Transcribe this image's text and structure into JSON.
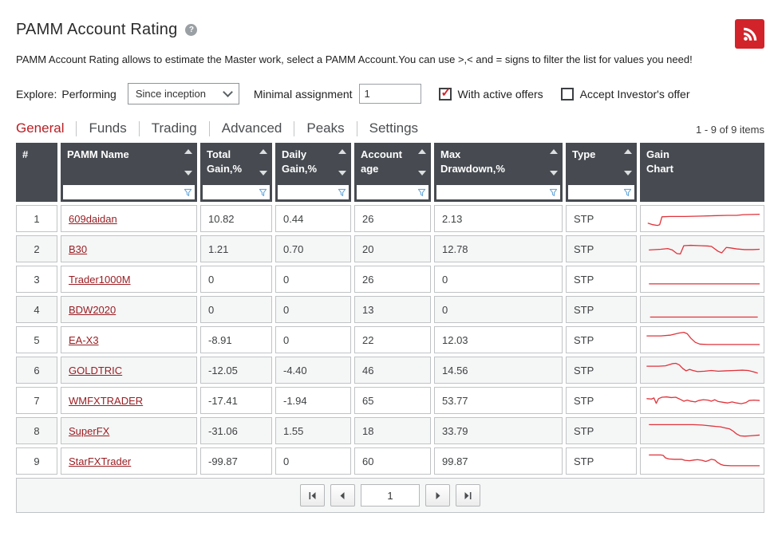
{
  "header": {
    "title": "PAMM Account Rating",
    "help_glyph": "?",
    "description": "PAMM Account Rating allows to estimate the Master work, select a PAMM Account.You can use >,< and = signs to filter the list for values you need!"
  },
  "filters": {
    "explore_label": "Explore:",
    "performing_label": "Performing",
    "period_select_value": "Since inception",
    "minimal_assignment_label": "Minimal assignment",
    "minimal_assignment_value": "1",
    "with_active_offers": {
      "label": "With active offers",
      "checked": true
    },
    "accept_investors_offer": {
      "label": "Accept Investor's offer",
      "checked": false
    }
  },
  "tabs": [
    {
      "label": "General",
      "active": true
    },
    {
      "label": "Funds",
      "active": false
    },
    {
      "label": "Trading",
      "active": false
    },
    {
      "label": "Advanced",
      "active": false
    },
    {
      "label": "Peaks",
      "active": false
    },
    {
      "label": "Settings",
      "active": false
    }
  ],
  "items_count": "1 - 9 of 9 items",
  "table": {
    "columns": [
      {
        "key": "num",
        "label": "#",
        "sortable": false,
        "filter": false
      },
      {
        "key": "name",
        "label": "PAMM Name",
        "sortable": true,
        "filter": true
      },
      {
        "key": "total_gain",
        "label": "Total\nGain,%",
        "sortable": true,
        "filter": true
      },
      {
        "key": "daily_gain",
        "label": "Daily\nGain,%",
        "sortable": true,
        "filter": true
      },
      {
        "key": "age",
        "label": "Account\nage",
        "sortable": true,
        "filter": true
      },
      {
        "key": "max_drawdown",
        "label": "Max\nDrawdown,%",
        "sortable": true,
        "filter": true
      },
      {
        "key": "type",
        "label": "Type",
        "sortable": true,
        "filter": true
      },
      {
        "key": "chart",
        "label": "Gain\nChart",
        "sortable": false,
        "filter": false
      }
    ],
    "rows": [
      {
        "num": "1",
        "name": "609daidan",
        "total_gain": "10.82",
        "daily_gain": "0.44",
        "age": "26",
        "max_drawdown": "2.13",
        "type": "STP",
        "spark": [
          [
            3,
            21
          ],
          [
            7,
            23
          ],
          [
            11,
            24
          ],
          [
            13,
            23
          ],
          [
            15,
            12
          ],
          [
            22,
            11.5
          ],
          [
            35,
            11.5
          ],
          [
            50,
            11
          ],
          [
            60,
            10.5
          ],
          [
            72,
            10
          ],
          [
            80,
            10
          ],
          [
            86,
            9
          ],
          [
            100,
            8.5
          ]
        ]
      },
      {
        "num": "2",
        "name": "B30",
        "total_gain": "1.21",
        "daily_gain": "0.70",
        "age": "20",
        "max_drawdown": "12.78",
        "type": "STP",
        "spark": [
          [
            4,
            16
          ],
          [
            14,
            15
          ],
          [
            20,
            14
          ],
          [
            24,
            16
          ],
          [
            28,
            21
          ],
          [
            31,
            21.5
          ],
          [
            34,
            10
          ],
          [
            40,
            9.5
          ],
          [
            48,
            10
          ],
          [
            55,
            10.5
          ],
          [
            58,
            11
          ],
          [
            64,
            18
          ],
          [
            67,
            20
          ],
          [
            71,
            12.5
          ],
          [
            74,
            13
          ],
          [
            80,
            14.5
          ],
          [
            87,
            15.5
          ],
          [
            94,
            15.5
          ],
          [
            100,
            15
          ]
        ]
      },
      {
        "num": "3",
        "name": "Trader1000M",
        "total_gain": "0",
        "daily_gain": "0",
        "age": "26",
        "max_drawdown": "0",
        "type": "STP",
        "spark": [
          [
            4,
            21
          ],
          [
            100,
            21
          ]
        ]
      },
      {
        "num": "4",
        "name": "BDW2020",
        "total_gain": "0",
        "daily_gain": "0",
        "age": "13",
        "max_drawdown": "0",
        "type": "STP",
        "spark": [
          [
            5,
            25
          ],
          [
            98,
            25
          ]
        ]
      },
      {
        "num": "5",
        "name": "EA-X3",
        "total_gain": "-8.91",
        "daily_gain": "0",
        "age": "22",
        "max_drawdown": "12.03",
        "type": "STP",
        "spark": [
          [
            2,
            9
          ],
          [
            14,
            9
          ],
          [
            22,
            8
          ],
          [
            30,
            5
          ],
          [
            34,
            4
          ],
          [
            37,
            6
          ],
          [
            40,
            12
          ],
          [
            44,
            18
          ],
          [
            48,
            20.5
          ],
          [
            55,
            21
          ],
          [
            100,
            21
          ]
        ]
      },
      {
        "num": "6",
        "name": "GOLDTRIC",
        "total_gain": "-12.05",
        "daily_gain": "-4.40",
        "age": "46",
        "max_drawdown": "14.56",
        "type": "STP",
        "spark": [
          [
            2,
            9
          ],
          [
            12,
            9
          ],
          [
            18,
            8.5
          ],
          [
            24,
            5.5
          ],
          [
            27,
            5
          ],
          [
            30,
            7
          ],
          [
            33,
            12
          ],
          [
            36,
            15.5
          ],
          [
            39,
            13.5
          ],
          [
            42,
            15
          ],
          [
            46,
            16.5
          ],
          [
            52,
            16
          ],
          [
            58,
            15
          ],
          [
            64,
            16
          ],
          [
            70,
            15.5
          ],
          [
            78,
            15
          ],
          [
            85,
            14.5
          ],
          [
            90,
            15
          ],
          [
            94,
            16.5
          ],
          [
            98,
            18.5
          ]
        ]
      },
      {
        "num": "7",
        "name": "WMFXTRADER",
        "total_gain": "-17.41",
        "daily_gain": "-1.94",
        "age": "65",
        "max_drawdown": "53.77",
        "type": "STP",
        "spark": [
          [
            2,
            12
          ],
          [
            6,
            12.5
          ],
          [
            8,
            11
          ],
          [
            10,
            18.5
          ],
          [
            12,
            12
          ],
          [
            15,
            10
          ],
          [
            19,
            9.5
          ],
          [
            23,
            10.5
          ],
          [
            27,
            10
          ],
          [
            31,
            13
          ],
          [
            34,
            15.5
          ],
          [
            37,
            14
          ],
          [
            40,
            15.5
          ],
          [
            44,
            16.5
          ],
          [
            47,
            14.5
          ],
          [
            51,
            13.5
          ],
          [
            55,
            14
          ],
          [
            58,
            15.5
          ],
          [
            61,
            13.5
          ],
          [
            64,
            16
          ],
          [
            68,
            17
          ],
          [
            72,
            18
          ],
          [
            76,
            16.5
          ],
          [
            80,
            18
          ],
          [
            84,
            19
          ],
          [
            88,
            17.5
          ],
          [
            91,
            14.5
          ],
          [
            95,
            14
          ],
          [
            100,
            14.5
          ]
        ]
      },
      {
        "num": "8",
        "name": "SuperFX",
        "total_gain": "-31.06",
        "daily_gain": "1.55",
        "age": "18",
        "max_drawdown": "33.79",
        "type": "STP",
        "spark": [
          [
            4,
            6
          ],
          [
            42,
            6
          ],
          [
            50,
            6.5
          ],
          [
            56,
            7.5
          ],
          [
            62,
            8.5
          ],
          [
            66,
            9
          ],
          [
            70,
            10.5
          ],
          [
            74,
            12
          ],
          [
            77,
            15
          ],
          [
            80,
            19
          ],
          [
            83,
            21.5
          ],
          [
            87,
            22
          ],
          [
            92,
            21.5
          ],
          [
            100,
            20.5
          ]
        ]
      },
      {
        "num": "9",
        "name": "StarFXTrader",
        "total_gain": "-99.87",
        "daily_gain": "0",
        "age": "60",
        "max_drawdown": "99.87",
        "type": "STP",
        "spark": [
          [
            4,
            6
          ],
          [
            14,
            6
          ],
          [
            16,
            6.5
          ],
          [
            18,
            10
          ],
          [
            21,
            11.5
          ],
          [
            26,
            12
          ],
          [
            32,
            12
          ],
          [
            35,
            13.5
          ],
          [
            39,
            14
          ],
          [
            43,
            13
          ],
          [
            46,
            12.5
          ],
          [
            50,
            13.5
          ],
          [
            53,
            15
          ],
          [
            55,
            14
          ],
          [
            58,
            12
          ],
          [
            61,
            13
          ],
          [
            63,
            16
          ],
          [
            66,
            19
          ],
          [
            69,
            20.5
          ],
          [
            75,
            21
          ],
          [
            100,
            21
          ]
        ]
      }
    ]
  },
  "pagination": {
    "page": "1",
    "first_icon": "first-page-icon",
    "prev_icon": "prev-page-icon",
    "next_icon": "next-page-icon",
    "last_icon": "last-page-icon"
  },
  "colors": {
    "accent_red": "#d2232a",
    "link_red": "#9a1e23",
    "header_bg": "#474b51",
    "row_alt_bg": "#f5f6f6",
    "filter_icon_blue": "#5ba0d9",
    "spark_red": "#e0333a"
  }
}
